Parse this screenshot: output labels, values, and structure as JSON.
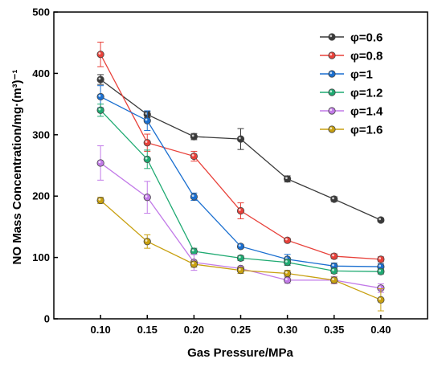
{
  "chart_data": {
    "type": "line",
    "xlabel": "Gas Pressure/MPa",
    "ylabel": "NO Mass Concentration/mg·(m³)⁻¹",
    "x": [
      0.1,
      0.15,
      0.2,
      0.25,
      0.3,
      0.35,
      0.4
    ],
    "x_tick_labels": [
      "0.10",
      "0.15",
      "0.20",
      "0.25",
      "0.30",
      "0.35",
      "0.40"
    ],
    "xlim": [
      0.05,
      0.45
    ],
    "ylim": [
      0,
      500
    ],
    "y_ticks": [
      0,
      100,
      200,
      300,
      400,
      500
    ],
    "y_tick_labels": [
      "0",
      "100",
      "200",
      "300",
      "400",
      "500"
    ],
    "legend_position": "top-right",
    "grid": false,
    "series": [
      {
        "name": "φ=0.6",
        "color": "#3a3a3a",
        "values": [
          390,
          333,
          297,
          293,
          228,
          195,
          161
        ],
        "errors": [
          8,
          5,
          5,
          17,
          5,
          4,
          3
        ]
      },
      {
        "name": "φ=0.8",
        "color": "#e8413a",
        "values": [
          431,
          287,
          265,
          176,
          128,
          102,
          97
        ],
        "errors": [
          20,
          14,
          8,
          13,
          3,
          4,
          4
        ]
      },
      {
        "name": "φ=1",
        "color": "#1a6fd0",
        "values": [
          362,
          323,
          199,
          118,
          97,
          86,
          85
        ],
        "errors": [
          18,
          16,
          6,
          3,
          8,
          5,
          5
        ]
      },
      {
        "name": "φ=1.2",
        "color": "#1faa72",
        "values": [
          340,
          260,
          110,
          99,
          92,
          78,
          77
        ],
        "errors": [
          10,
          15,
          5,
          4,
          5,
          4,
          4
        ]
      },
      {
        "name": "φ=1.4",
        "color": "#c27ae8",
        "values": [
          254,
          198,
          92,
          82,
          63,
          63,
          50
        ],
        "errors": [
          28,
          26,
          13,
          3,
          5,
          6,
          7
        ]
      },
      {
        "name": "φ=1.6",
        "color": "#c8a010",
        "values": [
          193,
          126,
          89,
          79,
          74,
          63,
          31
        ],
        "errors": [
          5,
          11,
          5,
          5,
          5,
          5,
          18
        ]
      }
    ]
  }
}
